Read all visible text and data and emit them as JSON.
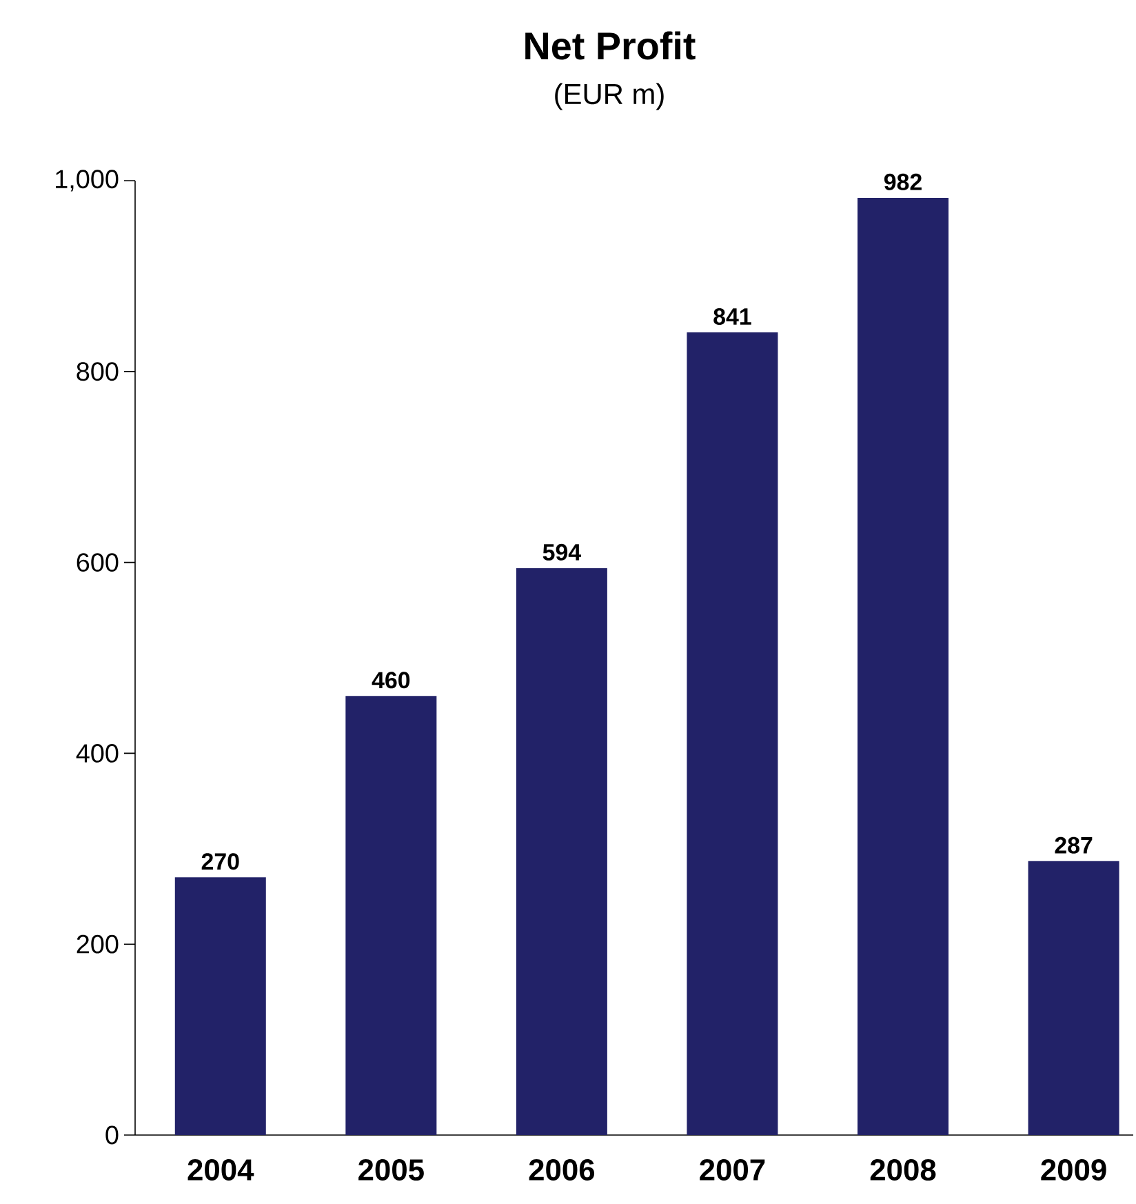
{
  "chart_data": {
    "type": "bar",
    "title": "Net Profit",
    "subtitle": "(EUR m)",
    "categories": [
      "2004",
      "2005",
      "2006",
      "2007",
      "2008",
      "2009"
    ],
    "values": [
      270,
      460,
      594,
      841,
      982,
      287
    ],
    "color": "#222268",
    "ylim": [
      0,
      1000
    ],
    "yticks": [
      0,
      200,
      400,
      600,
      800,
      {
        "value": 1000,
        "label": "1,000"
      }
    ],
    "data_labels": true,
    "grid": false
  }
}
